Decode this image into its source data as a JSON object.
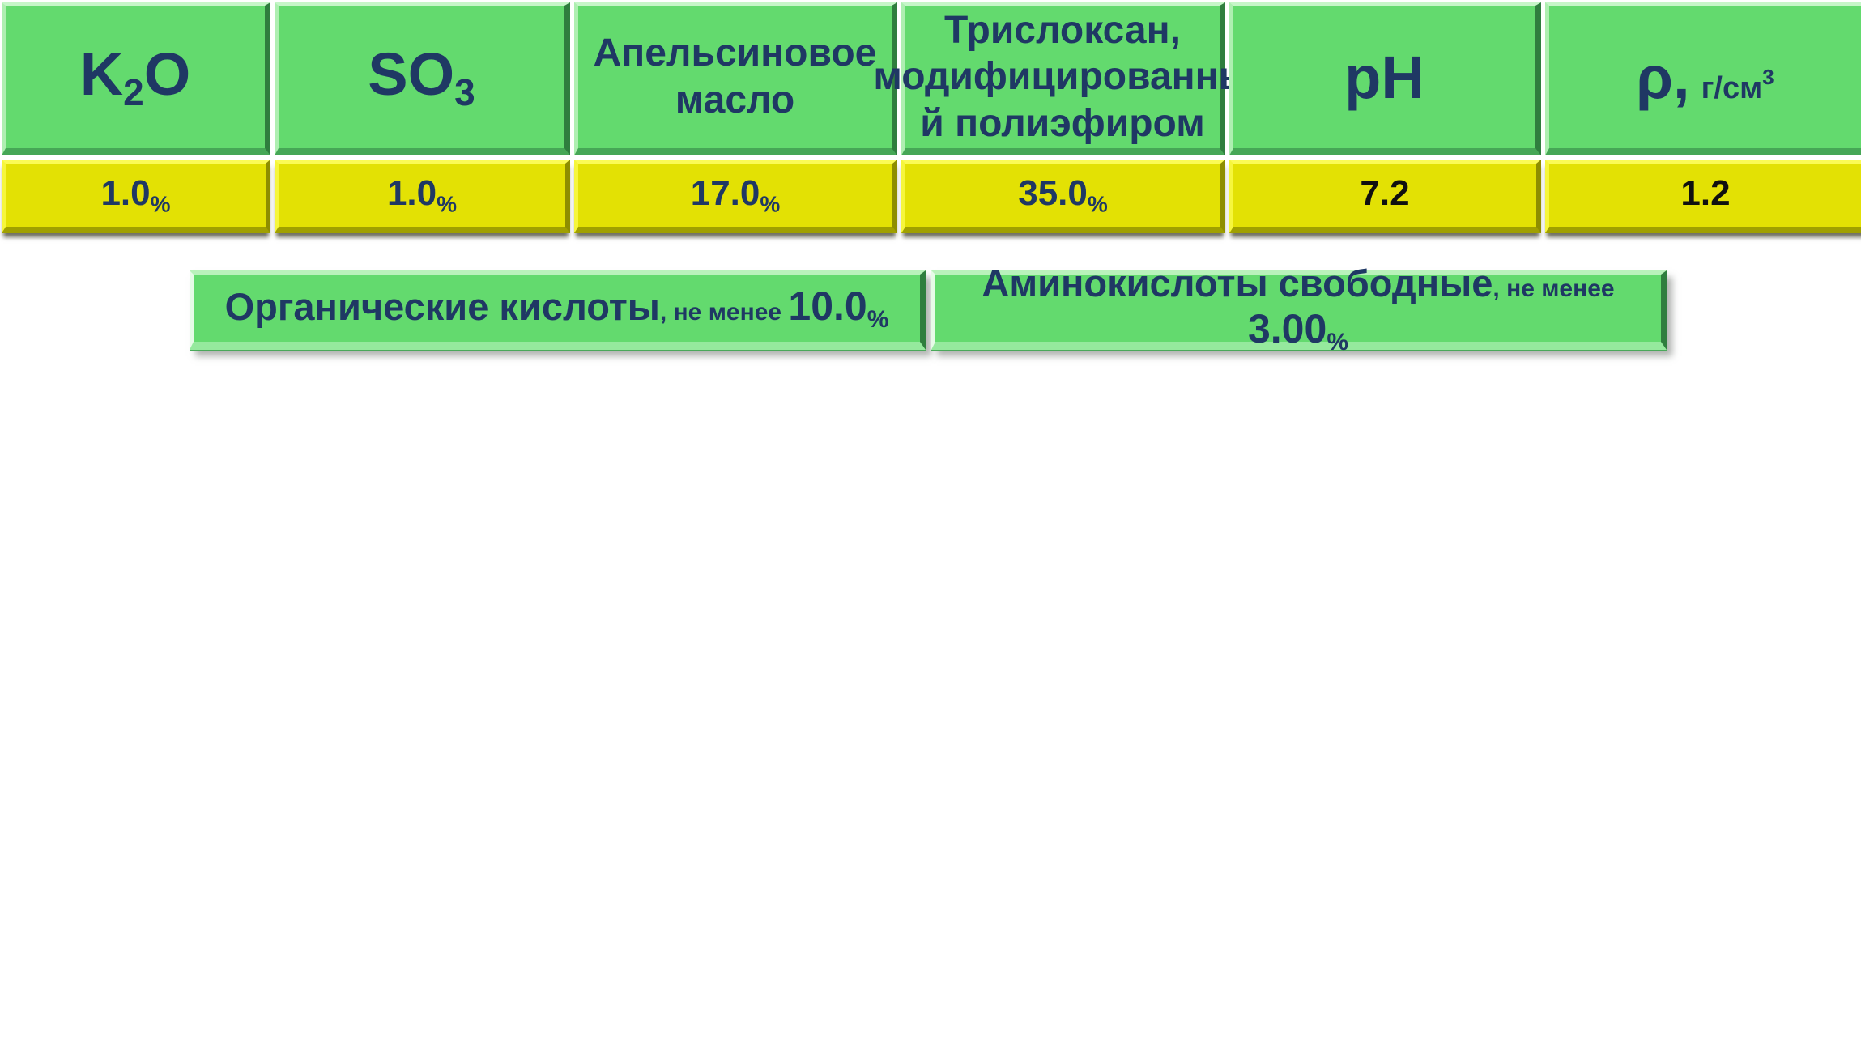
{
  "colors": {
    "green": "#63da6e",
    "yellow": "#e3e104",
    "navy": "#1f3864",
    "value_dark": "#101010"
  },
  "table": {
    "columns": [
      {
        "header": {
          "main": "K",
          "sub": "2",
          "tail": "O"
        },
        "value": "1.0",
        "unit": "%",
        "value_color": "#1f3864"
      },
      {
        "header": {
          "main": "SO",
          "sub": "3",
          "tail": ""
        },
        "value": "1.0",
        "unit": "%",
        "value_color": "#1f3864"
      },
      {
        "header": {
          "text": "Апельсиновое\nмасло"
        },
        "value": "17.0",
        "unit": "%",
        "value_color": "#1f3864"
      },
      {
        "header": {
          "text": "Трислоксан,\nмодифицированны\nй полиэфиром"
        },
        "value": "35.0",
        "unit": "%",
        "value_color": "#1f3864"
      },
      {
        "header": {
          "text": "pH"
        },
        "value": "7.2",
        "unit": "",
        "value_color": "#101010"
      },
      {
        "header": {
          "main": "ρ,",
          "unit": "г/см",
          "unit_sup": "3"
        },
        "value": "1.2",
        "unit": "",
        "value_color": "#101010"
      }
    ]
  },
  "pills": [
    {
      "label": "Органические кислоты",
      "qualifier": ", не менее ",
      "value": "10.0",
      "unit": "%"
    },
    {
      "label": "Аминокислоты свободные",
      "qualifier": ", не менее ",
      "value": "3.00",
      "unit": "%"
    }
  ]
}
